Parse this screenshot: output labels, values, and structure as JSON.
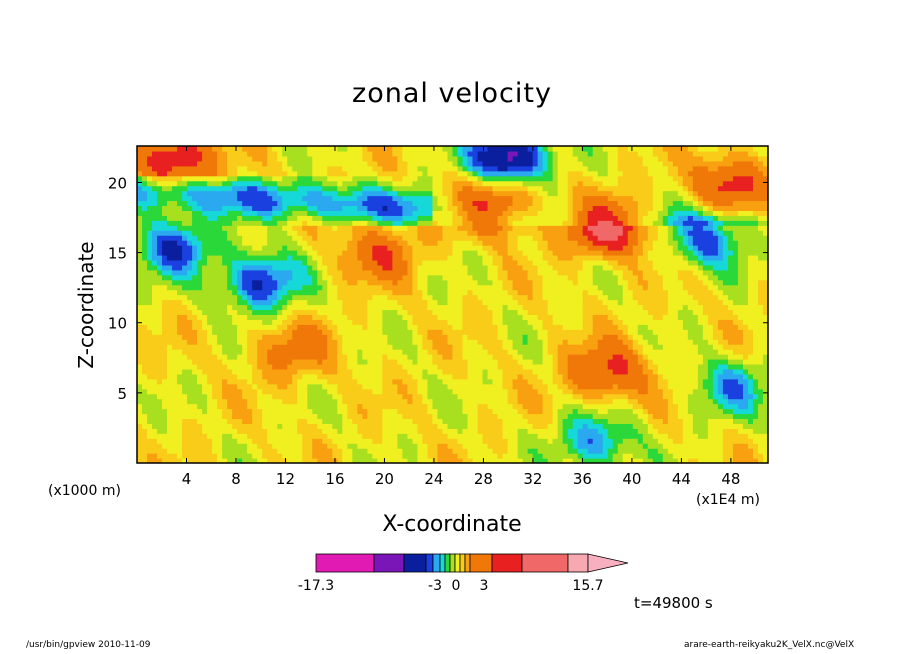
{
  "chart_data": {
    "type": "heatmap",
    "title": "zonal velocity",
    "xlabel": "X-coordinate",
    "ylabel": "Z-coordinate",
    "x_unit_left": "(x1000 m)",
    "x_unit_right": "(x1E4 m)",
    "x_ticks": [
      4,
      8,
      12,
      16,
      20,
      24,
      28,
      32,
      36,
      40,
      44,
      48
    ],
    "y_ticks": [
      5,
      10,
      15,
      20
    ],
    "xlim": [
      0,
      51
    ],
    "ylim": [
      0,
      22.6
    ],
    "colorbar": {
      "labels": [
        "-17.3",
        "-3",
        "0",
        "3",
        "15.7"
      ],
      "colors": [
        "#e21ab4",
        "#7a16b8",
        "#0a1f9e",
        "#1a40e0",
        "#2aa8f0",
        "#16d8d8",
        "#2ad83a",
        "#a8e020",
        "#f0f020",
        "#f8cc18",
        "#f8a010",
        "#f07808",
        "#e82020",
        "#f06868",
        "#f8a8b0"
      ]
    },
    "hot_spots": [
      {
        "x": 38,
        "y": 16.8,
        "value": 11
      },
      {
        "x": 29,
        "y": 18.5,
        "value": 10
      },
      {
        "x": 38,
        "y": 6.5,
        "value": 8
      },
      {
        "x": 3,
        "y": 21.8,
        "value": 10
      },
      {
        "x": 48,
        "y": 20,
        "value": 8
      },
      {
        "x": 19.5,
        "y": 15,
        "value": 6
      },
      {
        "x": 12.5,
        "y": 8,
        "value": 5
      }
    ],
    "cold_spots": [
      {
        "x": 30,
        "y": 21.8,
        "value": -15
      },
      {
        "x": 10,
        "y": 13,
        "value": -10
      },
      {
        "x": 3,
        "y": 15.5,
        "value": -9
      },
      {
        "x": 46,
        "y": 16,
        "value": -8
      },
      {
        "x": 48,
        "y": 5.5,
        "value": -6
      },
      {
        "x": 37,
        "y": 1.5,
        "value": -7
      }
    ]
  },
  "annotations": {
    "time": "t=49800 s",
    "footer_left": "/usr/bin/gpview   2010-11-09",
    "footer_right": "arare-earth-reikyaku2K_VelX.nc@VelX"
  }
}
